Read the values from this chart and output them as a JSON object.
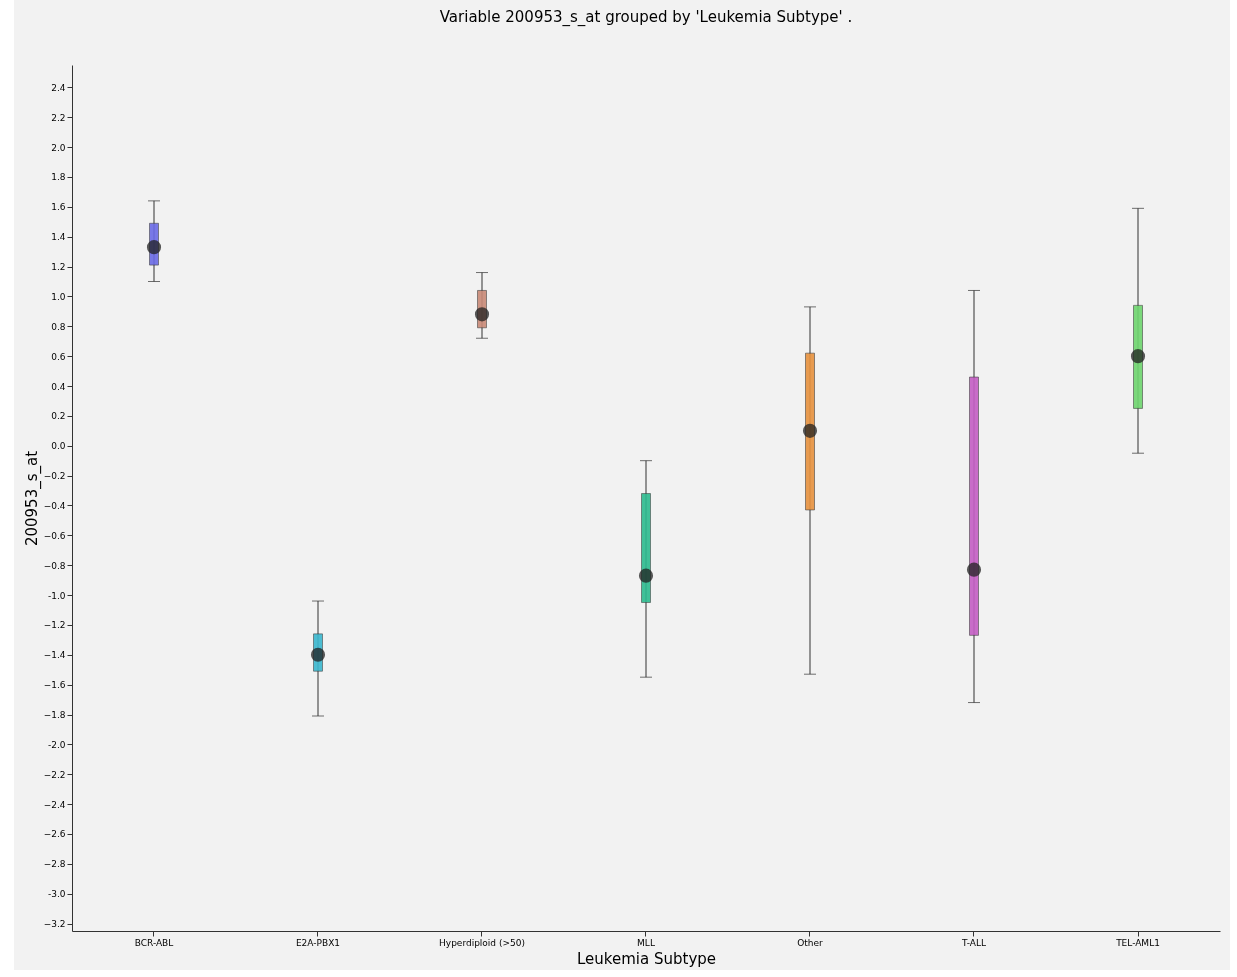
{
  "chart_data": {
    "type": "box",
    "title": "Variable 200953_s_at grouped by 'Leukemia Subtype' .",
    "xlabel": "Leukemia Subtype",
    "ylabel": "200953_s_at",
    "categories": [
      "BCR-ABL",
      "E2A-PBX1",
      "Hyperdiploid (>50)",
      "MLL",
      "Other",
      "T-ALL",
      "TEL-AML1"
    ],
    "colors": [
      "#6b6be6",
      "#3bb8cf",
      "#c98a78",
      "#2dbb8f",
      "#e8923f",
      "#c45ec4",
      "#6fd66f"
    ],
    "boxes": [
      {
        "low": 1.1,
        "q1": 1.21,
        "median": 1.33,
        "q3": 1.49,
        "high": 1.64
      },
      {
        "low": -1.81,
        "q1": -1.51,
        "median": -1.4,
        "q3": -1.26,
        "high": -1.04
      },
      {
        "low": 0.72,
        "q1": 0.79,
        "median": 0.88,
        "q3": 1.04,
        "high": 1.16
      },
      {
        "low": -1.55,
        "q1": -1.05,
        "median": -0.87,
        "q3": -0.32,
        "high": -0.1
      },
      {
        "low": -1.53,
        "q1": -0.43,
        "median": 0.1,
        "q3": 0.62,
        "high": 0.93
      },
      {
        "low": -1.72,
        "q1": -1.27,
        "median": -0.83,
        "q3": 0.46,
        "high": 1.04
      },
      {
        "low": -0.05,
        "q1": 0.25,
        "median": 0.6,
        "q3": 0.94,
        "high": 1.59
      }
    ],
    "ylim": [
      -3.25,
      2.55
    ],
    "yticks": [
      -3.2,
      {
        "value": -3,
        "label": "-3.0"
      },
      -2.8,
      -2.6,
      -2.4,
      -2.2,
      {
        "value": -2,
        "label": "-2.0"
      },
      -1.8,
      -1.6,
      -1.4,
      -1.2,
      {
        "value": -1,
        "label": "-1.0"
      },
      -0.8,
      -0.6,
      -0.4,
      -0.2,
      {
        "value": 0,
        "label": "0.0"
      },
      0.2,
      0.4,
      0.6,
      0.8,
      {
        "value": 1,
        "label": "1.0"
      },
      1.2,
      1.4,
      1.6,
      1.8,
      {
        "value": 2,
        "label": "2.0"
      },
      2.2,
      2.4
    ],
    "grid": false
  }
}
